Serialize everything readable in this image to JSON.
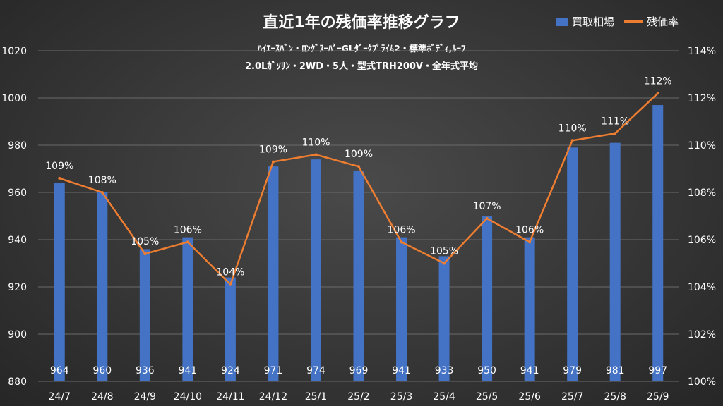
{
  "header": {
    "title": "直近1年の残価率推移グラフ",
    "subtitle_line1": "ﾊｲｴｰｽﾊﾞﾝ・ﾛﾝｸﾞｽｰﾊﾟｰGLﾀﾞｰｸﾌﾟﾗｲﾑ2・標準ﾎﾞﾃﾞｨ,ﾙｰﾌ",
    "subtitle_line2": "2.0Lｶﾞｿﾘﾝ・2WD・5人・型式TRH200V・全年式平均"
  },
  "legend": {
    "bar_label": "買取相場",
    "line_label": "残価率"
  },
  "colors": {
    "bar": "#4472c4",
    "line": "#ed7d31",
    "text": "#ffffff",
    "grid": "#6a6a6a"
  },
  "chart_data": {
    "type": "bar",
    "title": "直近1年の残価率推移グラフ",
    "categories": [
      "24/7",
      "24/8",
      "24/9",
      "24/10",
      "24/11",
      "24/12",
      "25/1",
      "25/2",
      "25/3",
      "25/4",
      "25/5",
      "25/6",
      "25/7",
      "25/8",
      "25/9"
    ],
    "series": [
      {
        "name": "買取相場",
        "type": "bar",
        "axis": "left",
        "values": [
          964,
          960,
          936,
          941,
          924,
          971,
          974,
          969,
          941,
          933,
          950,
          941,
          979,
          981,
          997
        ],
        "labels": [
          "964",
          "960",
          "936",
          "941",
          "924",
          "971",
          "974",
          "969",
          "941",
          "933",
          "950",
          "941",
          "979",
          "981",
          "997"
        ]
      },
      {
        "name": "残価率",
        "type": "line",
        "axis": "right",
        "values": [
          108.6,
          108.0,
          105.4,
          105.9,
          104.1,
          109.3,
          109.6,
          109.1,
          105.9,
          105.0,
          106.9,
          105.9,
          110.2,
          110.5,
          112.2
        ],
        "labels": [
          "109%",
          "108%",
          "105%",
          "106%",
          "104%",
          "109%",
          "110%",
          "109%",
          "106%",
          "105%",
          "107%",
          "106%",
          "110%",
          "111%",
          "112%"
        ]
      }
    ],
    "y_left": {
      "min": 880,
      "max": 1020,
      "ticks": [
        "880",
        "900",
        "920",
        "940",
        "960",
        "980",
        "1000",
        "1020"
      ],
      "tick_values": [
        880,
        900,
        920,
        940,
        960,
        980,
        1000,
        1020
      ]
    },
    "y_right": {
      "min": 100,
      "max": 114,
      "ticks": [
        "100%",
        "102%",
        "104%",
        "106%",
        "108%",
        "110%",
        "112%",
        "114%"
      ],
      "tick_values": [
        100,
        102,
        104,
        106,
        108,
        110,
        112,
        114
      ]
    },
    "grid": true,
    "legend_position": "top-right"
  }
}
